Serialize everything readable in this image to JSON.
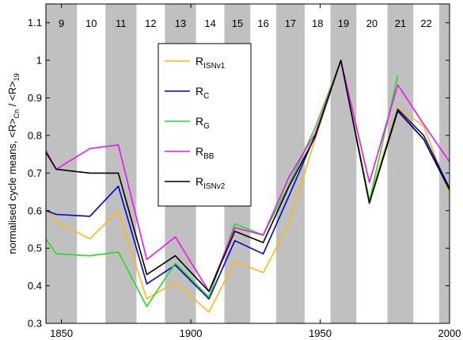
{
  "chart_data": {
    "type": "line",
    "ylabel_main": "normalised cycle means, <R>",
    "ylabel_sub1": "Cn",
    "ylabel_mid": " / <R>",
    "ylabel_sub2": "19",
    "xlim": [
      1844,
      2000
    ],
    "ylim": [
      0.3,
      1.15
    ],
    "xticks": [
      1850,
      1900,
      1950,
      2000
    ],
    "yticks": [
      0.3,
      0.4,
      0.5,
      0.6,
      0.7,
      0.8,
      0.9,
      1,
      1.1
    ],
    "ytick_labels": [
      "0.3",
      "0.4",
      "0.5",
      "0.6",
      "0.7",
      "0.8",
      "0.9",
      "1",
      "1.1"
    ],
    "xtick_labels": [
      "1850",
      "1900",
      "1950",
      "2000"
    ],
    "cycles": [
      {
        "label": "9",
        "start": 1844,
        "end": 1856,
        "shaded": true
      },
      {
        "label": "10",
        "start": 1856,
        "end": 1867,
        "shaded": false
      },
      {
        "label": "11",
        "start": 1867,
        "end": 1879,
        "shaded": true
      },
      {
        "label": "12",
        "start": 1879,
        "end": 1890,
        "shaded": false
      },
      {
        "label": "13",
        "start": 1890,
        "end": 1902,
        "shaded": true
      },
      {
        "label": "14",
        "start": 1902,
        "end": 1913,
        "shaded": false
      },
      {
        "label": "15",
        "start": 1913,
        "end": 1923,
        "shaded": true
      },
      {
        "label": "16",
        "start": 1923,
        "end": 1933,
        "shaded": false
      },
      {
        "label": "17",
        "start": 1933,
        "end": 1944,
        "shaded": true
      },
      {
        "label": "18",
        "start": 1944,
        "end": 1954,
        "shaded": false
      },
      {
        "label": "19",
        "start": 1954,
        "end": 1964,
        "shaded": true
      },
      {
        "label": "20",
        "start": 1964,
        "end": 1976,
        "shaded": false
      },
      {
        "label": "21",
        "start": 1976,
        "end": 1986,
        "shaded": true
      },
      {
        "label": "22",
        "start": 1986,
        "end": 1996,
        "shaded": false
      },
      {
        "label": "",
        "start": 1996,
        "end": 2000,
        "shaded": true
      }
    ],
    "series": [
      {
        "name": "R",
        "sub": "ISNv1",
        "color": "#FDB813",
        "x": [
          1844,
          1848,
          1861,
          1872,
          1883,
          1894,
          1907,
          1917,
          1928,
          1938,
          1948,
          1958,
          1969,
          1980,
          1990,
          2000
        ],
        "y": [
          0.61,
          0.57,
          0.525,
          0.6,
          0.365,
          0.41,
          0.33,
          0.465,
          0.435,
          0.565,
          0.79,
          1.0,
          0.63,
          0.875,
          0.825,
          0.645
        ]
      },
      {
        "name": "R",
        "sub": "C",
        "color": "#0000CC",
        "x": [
          1844,
          1848,
          1861,
          1872,
          1883,
          1894,
          1907,
          1917,
          1928,
          1938,
          1948,
          1958,
          1969,
          1980,
          1990,
          2000
        ],
        "y": [
          0.6,
          0.59,
          0.585,
          0.665,
          0.405,
          0.455,
          0.365,
          0.52,
          0.485,
          0.64,
          0.8,
          1.0,
          0.62,
          0.87,
          0.8,
          0.66
        ]
      },
      {
        "name": "R",
        "sub": "G",
        "color": "#22DD22",
        "x": [
          1844,
          1848,
          1861,
          1872,
          1883,
          1894,
          1907,
          1917,
          1928,
          1938,
          1948,
          1958,
          1969,
          1980
        ],
        "y": [
          0.525,
          0.485,
          0.48,
          0.49,
          0.345,
          0.46,
          0.37,
          0.565,
          0.535,
          0.67,
          0.82,
          1.0,
          0.625,
          0.96
        ]
      },
      {
        "name": "R",
        "sub": "BB",
        "color": "#EE11EE",
        "x": [
          1844,
          1848,
          1861,
          1872,
          1883,
          1894,
          1907,
          1917,
          1928,
          1938,
          1948,
          1958,
          1969,
          1980,
          1990,
          2000
        ],
        "y": [
          0.76,
          0.71,
          0.765,
          0.775,
          0.47,
          0.53,
          0.385,
          0.555,
          0.535,
          0.69,
          0.805,
          1.0,
          0.675,
          0.935,
          0.83,
          0.73
        ]
      },
      {
        "name": "R",
        "sub": "ISNv2",
        "color": "#000000",
        "x": [
          1844,
          1848,
          1861,
          1872,
          1883,
          1894,
          1907,
          1917,
          1928,
          1938,
          1948,
          1958,
          1969,
          1980,
          1990,
          2000
        ],
        "y": [
          0.755,
          0.71,
          0.7,
          0.7,
          0.43,
          0.48,
          0.385,
          0.545,
          0.515,
          0.665,
          0.795,
          1.0,
          0.62,
          0.865,
          0.79,
          0.655
        ]
      }
    ],
    "legend_position": "upper-center",
    "band_color": "#C0C0C0"
  }
}
